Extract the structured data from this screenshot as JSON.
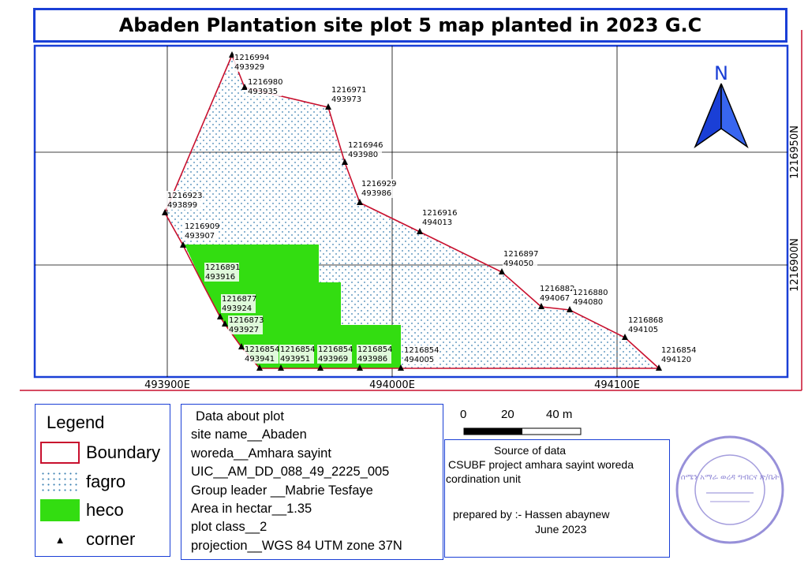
{
  "title": "Abaden Plantation site plot 5 map planted in 2023 G.C",
  "colors": {
    "boundary": "#c8102e",
    "fagro_dot": "#3a7fb0",
    "heco": "#33dd11",
    "frame": "#1a3fd6",
    "grid": "#000000"
  },
  "grid_labels": {
    "x": [
      "493900E",
      "494000E",
      "494100E"
    ],
    "y": [
      "1216950N",
      "1216900N"
    ]
  },
  "north_arrow": {
    "letter": "N",
    "icon": "north-arrow-icon"
  },
  "corners": [
    {
      "n": "1216994",
      "e": "493929"
    },
    {
      "n": "1216980",
      "e": "493935"
    },
    {
      "n": "1216971",
      "e": "493973"
    },
    {
      "n": "1216946",
      "e": "493980"
    },
    {
      "n": "1216929",
      "e": "493986"
    },
    {
      "n": "1216916",
      "e": "494013"
    },
    {
      "n": "1216897",
      "e": "494050"
    },
    {
      "n": "1216882",
      "e": "494067"
    },
    {
      "n": "1216880",
      "e": "494080"
    },
    {
      "n": "1216868",
      "e": "494105"
    },
    {
      "n": "1216854",
      "e": "494120"
    },
    {
      "n": "1216854",
      "e": "494005"
    },
    {
      "n": "1216854",
      "e": "493986"
    },
    {
      "n": "1216854",
      "e": "493969"
    },
    {
      "n": "1216854",
      "e": "493951"
    },
    {
      "n": "1216854",
      "e": "493941"
    },
    {
      "n": "1216873",
      "e": "493927"
    },
    {
      "n": "1216877",
      "e": "493924"
    },
    {
      "n": "1216891",
      "e": "493916"
    },
    {
      "n": "1216909",
      "e": "493907"
    },
    {
      "n": "1216923",
      "e": "493899"
    }
  ],
  "legend": {
    "title": "Legend",
    "items": [
      {
        "label": "Boundary"
      },
      {
        "label": "fagro"
      },
      {
        "label": "heco"
      },
      {
        "label": "corner"
      }
    ]
  },
  "plot_info": {
    "heading": "Data about plot",
    "lines": [
      "site name__Abaden",
      "woreda__Amhara sayint",
      "UIC__AM_DD_088_49_2225_005",
      "Group leader __Mabrie Tesfaye",
      "Area in hectar__1.35",
      "plot class__2",
      "projection__WGS 84 UTM zone 37N"
    ]
  },
  "scale_bar": {
    "labels": [
      "0",
      "20",
      "40 m"
    ]
  },
  "source": {
    "heading": "Source of data",
    "line1": "CSUBF project amhara sayint woreda",
    "line2": "cordination unit",
    "prepared": "prepared by :- Hassen abaynew",
    "date": "June 2023"
  },
  "stamp": {
    "text": "ሰሜን አማራ ወረዳ ግብርና ጽ/ቤት"
  }
}
